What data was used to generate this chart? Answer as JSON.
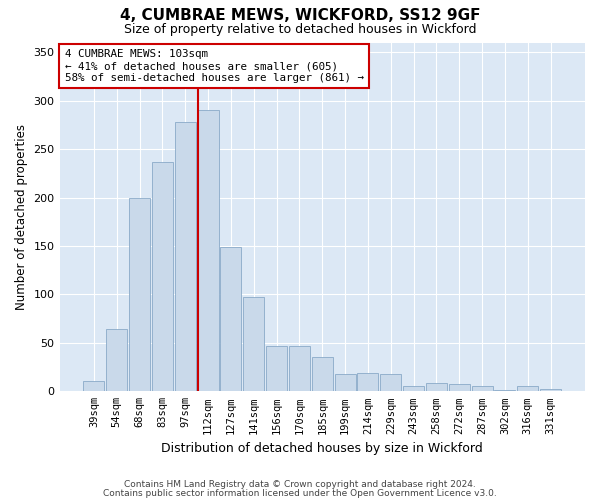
{
  "title": "4, CUMBRAE MEWS, WICKFORD, SS12 9GF",
  "subtitle": "Size of property relative to detached houses in Wickford",
  "xlabel": "Distribution of detached houses by size in Wickford",
  "ylabel": "Number of detached properties",
  "bar_color": "#c9d9ea",
  "bar_edge_color": "#8aaac8",
  "background_color": "#ffffff",
  "plot_bg_color": "#dce8f5",
  "categories": [
    "39sqm",
    "54sqm",
    "68sqm",
    "83sqm",
    "97sqm",
    "112sqm",
    "127sqm",
    "141sqm",
    "156sqm",
    "170sqm",
    "185sqm",
    "199sqm",
    "214sqm",
    "229sqm",
    "243sqm",
    "258sqm",
    "272sqm",
    "287sqm",
    "302sqm",
    "316sqm",
    "331sqm"
  ],
  "values": [
    11,
    64,
    200,
    237,
    278,
    290,
    149,
    97,
    47,
    47,
    35,
    18,
    19,
    18,
    5,
    9,
    8,
    5,
    1,
    5,
    2
  ],
  "marker_label": "4 CUMBRAE MEWS: 103sqm",
  "annotation_line1": "← 41% of detached houses are smaller (605)",
  "annotation_line2": "58% of semi-detached houses are larger (861) →",
  "marker_color": "#cc0000",
  "annotation_box_edge": "#cc0000",
  "ylim": [
    0,
    360
  ],
  "yticks": [
    0,
    50,
    100,
    150,
    200,
    250,
    300,
    350
  ],
  "footnote1": "Contains HM Land Registry data © Crown copyright and database right 2024.",
  "footnote2": "Contains public sector information licensed under the Open Government Licence v3.0."
}
